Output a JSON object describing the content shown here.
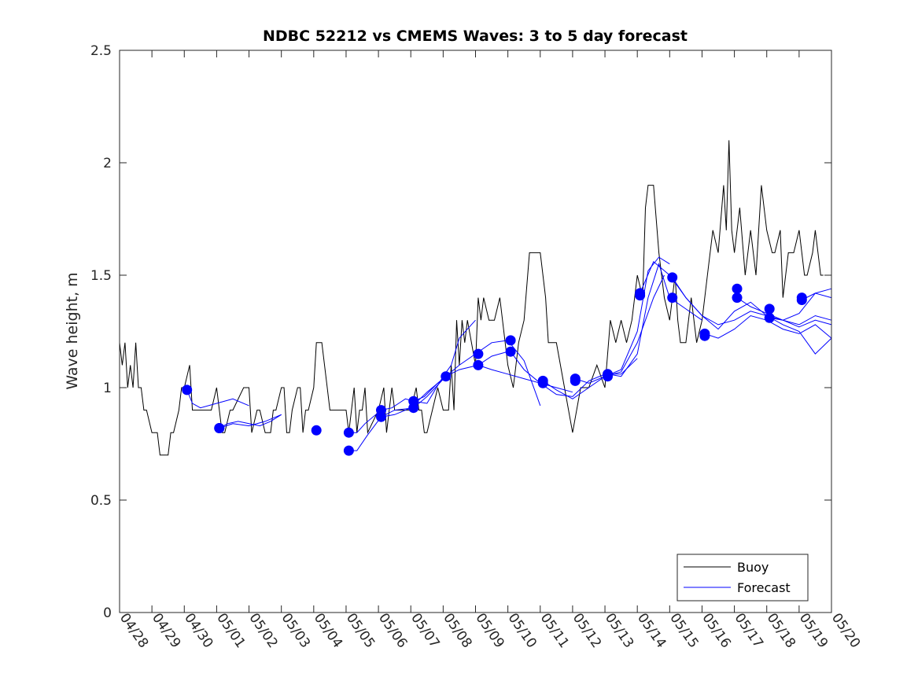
{
  "chart_data": {
    "type": "line",
    "title": "NDBC 52212 vs CMEMS Waves: 3 to 5 day forecast",
    "xlabel": "",
    "ylabel": "Wave height, m",
    "xlim": [
      "04/28",
      "05/20"
    ],
    "ylim": [
      0,
      2.5
    ],
    "yticks": [
      0,
      0.5,
      1,
      1.5,
      2,
      2.5
    ],
    "ytick_labels": [
      "0",
      "0.5",
      "1",
      "1.5",
      "2",
      "2.5"
    ],
    "xtick_labels": [
      "04/28",
      "04/29",
      "04/30",
      "05/01",
      "05/02",
      "05/03",
      "05/04",
      "05/05",
      "05/06",
      "05/07",
      "05/08",
      "05/09",
      "05/10",
      "05/11",
      "05/12",
      "05/13",
      "05/14",
      "05/15",
      "05/16",
      "05/17",
      "05/18",
      "05/19",
      "05/20"
    ],
    "grid": false,
    "legend": {
      "placement": "bottom-right",
      "entries": [
        "Buoy",
        "Forecast"
      ]
    },
    "colors": {
      "buoy": "#000000",
      "forecast": "#0000ff",
      "marker": "#0000ff"
    },
    "series": [
      {
        "name": "Buoy",
        "x": [
          "04/28 00:00",
          "04/28 02:00",
          "04/28 04:00",
          "04/28 06:00",
          "04/28 08:00",
          "04/28 10:00",
          "04/28 12:00",
          "04/28 14:00",
          "04/28 16:00",
          "04/28 18:00",
          "04/28 20:00",
          "04/29 00:00",
          "04/29 04:00",
          "04/29 06:00",
          "04/29 12:00",
          "04/29 14:00",
          "04/29 16:00",
          "04/29 20:00",
          "04/29 22:00",
          "04/30 00:00",
          "04/30 04:00",
          "04/30 06:00",
          "04/30 08:00",
          "04/30 10:00",
          "04/30 14:00",
          "04/30 20:00",
          "05/01 00:00",
          "05/01 04:00",
          "05/01 06:00",
          "05/01 10:00",
          "05/01 12:00",
          "05/01 20:00",
          "05/02 00:00",
          "05/02 02:00",
          "05/02 06:00",
          "05/02 08:00",
          "05/02 12:00",
          "05/02 16:00",
          "05/02 18:00",
          "05/02 20:00",
          "05/03 00:00",
          "05/03 02:00",
          "05/03 04:00",
          "05/03 06:00",
          "05/03 08:00",
          "05/03 12:00",
          "05/03 14:00",
          "05/03 16:00",
          "05/03 18:00",
          "05/03 20:00",
          "05/04 00:00",
          "05/04 02:00",
          "05/04 06:00",
          "05/04 10:00",
          "05/04 12:00",
          "05/04 16:00",
          "05/05 00:00",
          "05/05 02:00",
          "05/05 04:00",
          "05/05 06:00",
          "05/05 08:00",
          "05/05 10:00",
          "05/05 12:00",
          "05/05 14:00",
          "05/05 16:00",
          "05/06 00:00",
          "05/06 04:00",
          "05/06 06:00",
          "05/06 10:00",
          "05/06 12:00",
          "05/06 14:00",
          "05/06 20:00",
          "05/07 00:00",
          "05/07 04:00",
          "05/07 06:00",
          "05/07 08:00",
          "05/07 10:00",
          "05/07 12:00",
          "05/07 20:00",
          "05/08 00:00",
          "05/08 04:00",
          "05/08 06:00",
          "05/08 08:00",
          "05/08 10:00",
          "05/08 12:00",
          "05/08 14:00",
          "05/08 16:00",
          "05/08 18:00",
          "05/09 00:00",
          "05/09 02:00",
          "05/09 04:00",
          "05/09 06:00",
          "05/09 10:00",
          "05/09 14:00",
          "05/09 18:00",
          "05/10 00:00",
          "05/10 04:00",
          "05/10 08:00",
          "05/10 12:00",
          "05/10 16:00",
          "05/10 20:00",
          "05/11 00:00",
          "05/11 04:00",
          "05/11 06:00",
          "05/11 12:00",
          "05/11 18:00",
          "05/12 00:00",
          "05/12 06:00",
          "05/12 12:00",
          "05/12 18:00",
          "05/13 00:00",
          "05/13 04:00",
          "05/13 08:00",
          "05/13 12:00",
          "05/13 16:00",
          "05/13 20:00",
          "05/14 00:00",
          "05/14 04:00",
          "05/14 06:00",
          "05/14 08:00",
          "05/14 12:00",
          "05/14 16:00",
          "05/14 20:00",
          "05/15 00:00",
          "05/15 04:00",
          "05/15 06:00",
          "05/15 08:00",
          "05/15 12:00",
          "05/15 16:00",
          "05/15 20:00",
          "05/16 00:00",
          "05/16 04:00",
          "05/16 08:00",
          "05/16 12:00",
          "05/16 16:00",
          "05/16 18:00",
          "05/16 20:00",
          "05/16 22:00",
          "05/17 00:00",
          "05/17 02:00",
          "05/17 04:00",
          "05/17 08:00",
          "05/17 12:00",
          "05/17 16:00",
          "05/17 20:00",
          "05/18 00:00",
          "05/18 04:00",
          "05/18 06:00",
          "05/18 10:00",
          "05/18 12:00",
          "05/18 16:00",
          "05/18 20:00",
          "05/19 00:00",
          "05/19 04:00",
          "05/19 06:00",
          "05/19 10:00",
          "05/19 12:00",
          "05/19 16:00",
          "05/19 18:00"
        ],
        "y": [
          1.2,
          1.1,
          1.2,
          1.0,
          1.1,
          1.0,
          1.2,
          1.0,
          1.0,
          0.9,
          0.9,
          0.8,
          0.8,
          0.7,
          0.7,
          0.8,
          0.8,
          0.9,
          1.0,
          1.0,
          1.1,
          0.9,
          0.9,
          0.9,
          0.9,
          0.9,
          1.0,
          0.8,
          0.8,
          0.9,
          0.9,
          1.0,
          1.0,
          0.8,
          0.9,
          0.9,
          0.8,
          0.8,
          0.9,
          0.9,
          1.0,
          1.0,
          0.8,
          0.8,
          0.9,
          1.0,
          1.0,
          0.8,
          0.9,
          0.9,
          1.0,
          1.2,
          1.2,
          1.0,
          0.9,
          0.9,
          0.9,
          0.8,
          0.9,
          1.0,
          0.8,
          0.9,
          0.9,
          1.0,
          0.8,
          0.9,
          1.0,
          0.8,
          1.0,
          0.9,
          0.9,
          0.9,
          0.9,
          1.0,
          0.9,
          0.9,
          0.8,
          0.8,
          1.0,
          0.9,
          0.9,
          1.1,
          0.9,
          1.3,
          1.1,
          1.3,
          1.2,
          1.3,
          1.1,
          1.4,
          1.3,
          1.4,
          1.3,
          1.3,
          1.4,
          1.1,
          1.0,
          1.2,
          1.3,
          1.6,
          1.6,
          1.6,
          1.4,
          1.2,
          1.2,
          1.0,
          0.8,
          1.0,
          1.0,
          1.1,
          1.0,
          1.3,
          1.2,
          1.3,
          1.2,
          1.3,
          1.5,
          1.4,
          1.8,
          1.9,
          1.9,
          1.6,
          1.4,
          1.3,
          1.5,
          1.3,
          1.2,
          1.2,
          1.4,
          1.2,
          1.3,
          1.5,
          1.7,
          1.6,
          1.9,
          1.7,
          2.1,
          1.7,
          1.6,
          1.7,
          1.8,
          1.5,
          1.7,
          1.5,
          1.9,
          1.7,
          1.6,
          1.6,
          1.7,
          1.4,
          1.6,
          1.6,
          1.7,
          1.5,
          1.5,
          1.6,
          1.7,
          1.5,
          1.5
        ]
      },
      {
        "name": "Forecast",
        "x": [
          "04/30 02:00",
          "04/30 06:00",
          "04/30 12:00",
          "05/01 00:00",
          "05/01 12:00",
          "05/02 00:00"
        ],
        "y": [
          0.99,
          0.93,
          0.91,
          0.93,
          0.95,
          0.92
        ]
      },
      {
        "x": [
          "05/01 02:00",
          "05/01 08:00",
          "05/01 16:00",
          "05/02 00:00",
          "05/02 08:00",
          "05/02 16:00",
          "05/03 00:00"
        ],
        "y": [
          0.82,
          0.84,
          0.85,
          0.84,
          0.83,
          0.85,
          0.88
        ]
      },
      {
        "x": [
          "05/01 02:00",
          "05/01 12:00",
          "05/02 00:00",
          "05/02 12:00",
          "05/03 00:00"
        ],
        "y": [
          0.82,
          0.84,
          0.83,
          0.85,
          0.88
        ]
      },
      {
        "x": [
          "05/05 02:00",
          "05/05 08:00",
          "05/05 14:00",
          "05/06 02:00",
          "05/06 10:00",
          "05/06 20:00",
          "05/07 02:00",
          "05/07 10:00",
          "05/07 20:00",
          "05/08 02:00"
        ],
        "y": [
          0.8,
          0.8,
          0.84,
          0.9,
          0.91,
          0.95,
          0.94,
          0.96,
          1.02,
          1.05
        ]
      },
      {
        "x": [
          "05/05 02:00",
          "05/05 08:00",
          "05/05 16:00",
          "05/06 02:00",
          "05/06 12:00",
          "05/07 02:00",
          "05/07 12:00",
          "05/08 02:00",
          "05/08 12:00",
          "05/09 02:00",
          "05/09 12:00",
          "05/10 00:00"
        ],
        "y": [
          0.72,
          0.72,
          0.79,
          0.87,
          0.9,
          0.91,
          0.96,
          1.05,
          1.08,
          1.1,
          1.14,
          1.16
        ]
      },
      {
        "x": [
          "05/06 02:00",
          "05/06 12:00",
          "05/07 00:00",
          "05/07 12:00",
          "05/08 00:00",
          "05/08 12:00",
          "05/09 00:00",
          "05/09 12:00",
          "05/10 00:00",
          "05/10 12:00",
          "05/11 00:00"
        ],
        "y": [
          0.87,
          0.88,
          0.91,
          0.98,
          1.04,
          1.1,
          1.15,
          1.2,
          1.21,
          1.12,
          0.92
        ]
      },
      {
        "x": [
          "05/07 02:00",
          "05/07 12:00",
          "05/08 00:00",
          "05/08 06:00",
          "05/08 12:00",
          "05/08 18:00",
          "05/09 00:00"
        ],
        "y": [
          0.94,
          0.93,
          1.05,
          1.1,
          1.22,
          1.26,
          1.3
        ]
      },
      {
        "x": [
          "05/09 02:00",
          "05/09 12:00",
          "05/10 00:00",
          "05/10 12:00",
          "05/11 00:00",
          "05/11 12:00",
          "05/12 00:00"
        ],
        "y": [
          1.1,
          1.08,
          1.06,
          1.04,
          1.02,
          1.0,
          0.98
        ]
      },
      {
        "x": [
          "05/10 02:00",
          "05/10 12:00",
          "05/11 00:00",
          "05/11 12:00",
          "05/12 00:00",
          "05/12 12:00",
          "05/13 00:00",
          "05/13 12:00",
          "05/14 00:00"
        ],
        "y": [
          1.16,
          1.08,
          1.02,
          0.97,
          0.96,
          1.03,
          1.06,
          1.06,
          1.13
        ]
      },
      {
        "x": [
          "05/11 02:00",
          "05/11 12:00",
          "05/12 00:00",
          "05/12 12:00",
          "05/13 00:00",
          "05/13 12:00",
          "05/14 00:00",
          "05/14 12:00",
          "05/14 20:00"
        ],
        "y": [
          1.03,
          0.99,
          0.95,
          1.0,
          1.05,
          1.07,
          1.2,
          1.4,
          1.5
        ]
      },
      {
        "x": [
          "05/12 02:00",
          "05/12 12:00",
          "05/13 00:00",
          "05/13 12:00",
          "05/14 00:00",
          "05/14 08:00",
          "05/14 16:00",
          "05/15 00:00"
        ],
        "y": [
          1.04,
          1.02,
          1.05,
          1.08,
          1.25,
          1.52,
          1.58,
          1.55
        ]
      },
      {
        "x": [
          "05/13 02:00",
          "05/13 12:00",
          "05/14 00:00",
          "05/14 08:00",
          "05/14 16:00",
          "05/15 00:00",
          "05/15 12:00",
          "05/16 00:00"
        ],
        "y": [
          1.06,
          1.05,
          1.15,
          1.4,
          1.55,
          1.4,
          1.35,
          1.3
        ]
      },
      {
        "x": [
          "05/14 02:00",
          "05/14 12:00",
          "05/15 00:00",
          "05/15 12:00",
          "05/16 00:00",
          "05/16 12:00",
          "05/17 00:00",
          "05/17 12:00",
          "05/18 00:00",
          "05/18 12:00",
          "05/19 00:00",
          "05/19 12:00",
          "05/20 00:00"
        ],
        "y": [
          1.42,
          1.56,
          1.5,
          1.4,
          1.32,
          1.28,
          1.3,
          1.34,
          1.32,
          1.3,
          1.27,
          1.3,
          1.28
        ]
      },
      {
        "x": [
          "05/15 02:00",
          "05/15 12:00",
          "05/16 00:00",
          "05/16 12:00",
          "05/17 00:00",
          "05/17 12:00",
          "05/18 00:00",
          "05/18 12:00",
          "05/19 00:00",
          "05/19 12:00",
          "05/20 00:00"
        ],
        "y": [
          1.49,
          1.4,
          1.32,
          1.26,
          1.34,
          1.38,
          1.32,
          1.28,
          1.25,
          1.15,
          1.22
        ]
      },
      {
        "x": [
          "05/16 02:00",
          "05/16 12:00",
          "05/17 00:00",
          "05/17 12:00",
          "05/18 00:00",
          "05/18 12:00",
          "05/19 00:00",
          "05/19 12:00",
          "05/20 00:00"
        ],
        "y": [
          1.24,
          1.22,
          1.26,
          1.32,
          1.3,
          1.26,
          1.24,
          1.28,
          1.22
        ]
      },
      {
        "x": [
          "05/17 02:00",
          "05/17 12:00",
          "05/18 00:00",
          "05/18 12:00",
          "05/19 00:00",
          "05/19 12:00",
          "05/20 00:00"
        ],
        "y": [
          1.4,
          1.36,
          1.33,
          1.3,
          1.28,
          1.32,
          1.3
        ]
      },
      {
        "x": [
          "05/18 02:00",
          "05/18 12:00",
          "05/19 00:00",
          "05/19 12:00",
          "05/20 00:00"
        ],
        "y": [
          1.31,
          1.3,
          1.33,
          1.42,
          1.4
        ]
      },
      {
        "x": [
          "05/19 02:00",
          "05/19 12:00",
          "05/20 00:00"
        ],
        "y": [
          1.39,
          1.42,
          1.44
        ]
      }
    ],
    "markers": {
      "x": [
        "04/30 02:00",
        "05/01 02:00",
        "05/01 02:00",
        "05/04 02:00",
        "05/05 02:00",
        "05/05 02:00",
        "05/06 02:00",
        "05/06 02:00",
        "05/07 02:00",
        "05/07 02:00",
        "05/08 02:00",
        "05/09 02:00",
        "05/09 02:00",
        "05/10 02:00",
        "05/10 02:00",
        "05/11 02:00",
        "05/11 02:00",
        "05/12 02:00",
        "05/12 02:00",
        "05/13 02:00",
        "05/13 02:00",
        "05/14 02:00",
        "05/14 02:00",
        "05/15 02:00",
        "05/15 02:00",
        "05/16 02:00",
        "05/16 02:00",
        "05/17 02:00",
        "05/17 02:00",
        "05/18 02:00",
        "05/18 02:00",
        "05/19 02:00",
        "05/19 02:00"
      ],
      "y": [
        0.99,
        0.82,
        0.82,
        0.81,
        0.8,
        0.72,
        0.9,
        0.87,
        0.94,
        0.91,
        1.05,
        1.15,
        1.1,
        1.21,
        1.16,
        1.03,
        1.02,
        1.04,
        1.03,
        1.06,
        1.05,
        1.42,
        1.41,
        1.49,
        1.4,
        1.24,
        1.23,
        1.44,
        1.4,
        1.35,
        1.31,
        1.4,
        1.39
      ]
    }
  }
}
